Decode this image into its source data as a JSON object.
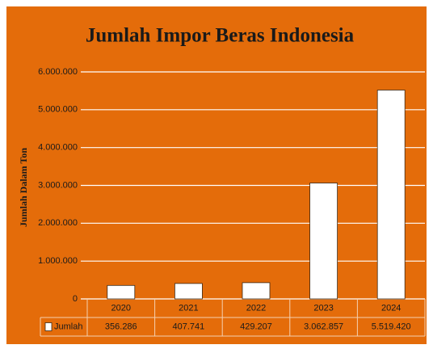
{
  "chart_data": {
    "type": "bar",
    "title": "Jumlah Impor Beras Indonesia",
    "y_label": "Jumlah Dalam Ton",
    "categories": [
      "2020",
      "2021",
      "2022",
      "2023",
      "2024"
    ],
    "series": [
      {
        "name": "Jumlah",
        "color": "#ffffff",
        "values": [
          356286,
          407741,
          429207,
          3062857,
          5519420
        ],
        "value_labels": [
          "356.286",
          "407.741",
          "429.207",
          "3.062.857",
          "5.519.420"
        ]
      }
    ],
    "ylim": [
      0,
      6000000
    ],
    "yticks": [
      0,
      {
        "value": 1000000,
        "label": "1.000.000"
      },
      {
        "value": 2000000,
        "label": "2.000.000"
      },
      {
        "value": 3000000,
        "label": "3.000.000"
      },
      {
        "value": 4000000,
        "label": "4.000.000"
      },
      {
        "value": 5000000,
        "label": "5.000.000"
      },
      {
        "value": 6000000,
        "label": "6.000.000"
      }
    ],
    "grid": true,
    "data_table": true
  }
}
